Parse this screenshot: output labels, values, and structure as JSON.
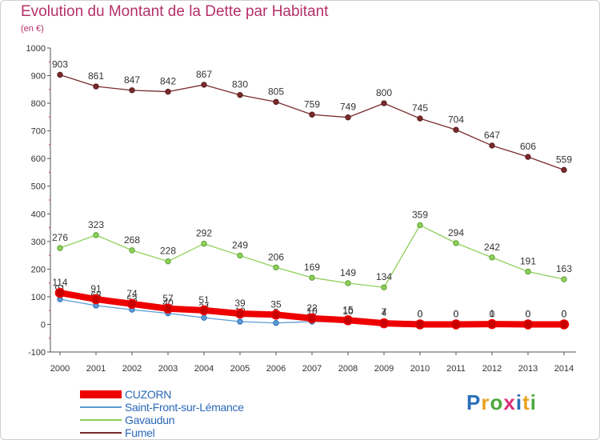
{
  "title": "Evolution du Montant de la Dette par Habitant",
  "subtitle": "(en €)",
  "logo": {
    "letters": [
      "P",
      "r",
      "o",
      "x",
      "i",
      "t",
      "i"
    ],
    "colors": [
      "#2a6fb8",
      "#e8a21f",
      "#4aa83c",
      "#d82f7a",
      "#2a6fb8",
      "#e8a21f",
      "#4aa83c"
    ]
  },
  "chart_data": {
    "type": "line",
    "title": "Evolution du Montant de la Dette par Habitant",
    "ylabel": "(en €)",
    "xlabel": "",
    "x": [
      "2000",
      "2001",
      "2002",
      "2003",
      "2004",
      "2005",
      "2006",
      "2007",
      "2008",
      "2009",
      "2010",
      "2011",
      "2012",
      "2013",
      "2014"
    ],
    "yticks": [
      "-100",
      "0",
      "100",
      "200",
      "300",
      "400",
      "500",
      "600",
      "700",
      "800",
      "900",
      "1000"
    ],
    "ylim": [
      -100,
      1000
    ],
    "grid": false,
    "legend_position": "bottom-left",
    "series": [
      {
        "name": "Fumel",
        "color": "#7a2a2a",
        "values": [
          903,
          861,
          847,
          842,
          867,
          830,
          805,
          759,
          749,
          800,
          745,
          704,
          647,
          606,
          559
        ],
        "labels": [
          "903",
          "861",
          "847",
          "842",
          "867",
          "830",
          "805",
          "759",
          "749",
          "800",
          "745",
          "704",
          "647",
          "606",
          "559"
        ]
      },
      {
        "name": "Gavaudun",
        "color": "#8fd05a",
        "values": [
          276,
          323,
          268,
          228,
          292,
          249,
          206,
          169,
          149,
          134,
          359,
          294,
          242,
          191,
          163
        ],
        "labels": [
          "276",
          "323",
          "268",
          "228",
          "292",
          "249",
          "206",
          "169",
          "149",
          "134",
          "359",
          "294",
          "242",
          "191",
          "163"
        ]
      },
      {
        "name": "Saint-Front-sur-Lémance",
        "color": "#5b9bd5",
        "values": [
          91,
          68,
          53,
          40,
          24,
          10,
          5,
          10,
          10,
          7,
          0,
          0,
          0,
          0,
          0
        ],
        "labels": [
          "91",
          "68",
          "53",
          "40",
          "24",
          "10",
          "5",
          "10",
          "10",
          "7",
          "0",
          "0",
          "0",
          "0",
          "0"
        ]
      },
      {
        "name": "CUZORN",
        "color": "#ee0000",
        "values": [
          114,
          91,
          74,
          57,
          51,
          39,
          35,
          22,
          15,
          4,
          0,
          0,
          1,
          0,
          0
        ],
        "labels": [
          "114",
          "91",
          "74",
          "57",
          "51",
          "39",
          "35",
          "22",
          "15",
          "4",
          "0",
          "0",
          "1",
          "0",
          "0"
        ]
      }
    ]
  }
}
